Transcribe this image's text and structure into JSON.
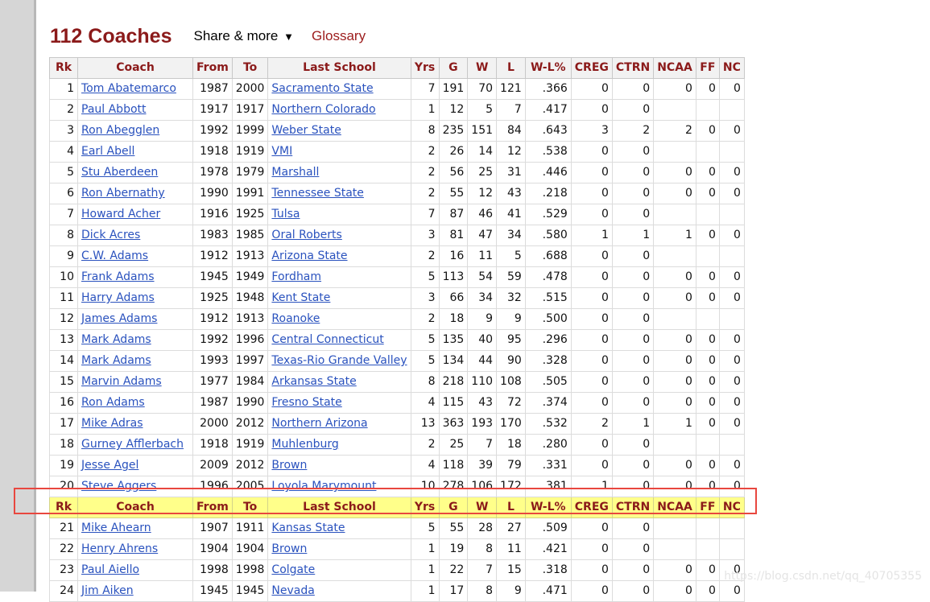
{
  "page": {
    "title": "112 Coaches",
    "share_label": "Share & more",
    "share_caret": "▼",
    "glossary_label": "Glossary",
    "watermark": "https://blog.csdn.net/qq_40705355"
  },
  "table": {
    "headers": [
      "Rk",
      "Coach",
      "From",
      "To",
      "Last School",
      "Yrs",
      "G",
      "W",
      "L",
      "W-L%",
      "CREG",
      "CTRN",
      "NCAA",
      "FF",
      "NC"
    ],
    "rows_before": [
      [
        "1",
        "Tom Abatemarco",
        "1987",
        "2000",
        "Sacramento State",
        "7",
        "191",
        "70",
        "121",
        ".366",
        "0",
        "0",
        "0",
        "0",
        "0"
      ],
      [
        "2",
        "Paul Abbott",
        "1917",
        "1917",
        "Northern Colorado",
        "1",
        "12",
        "5",
        "7",
        ".417",
        "0",
        "0",
        "",
        "",
        ""
      ],
      [
        "3",
        "Ron Abegglen",
        "1992",
        "1999",
        "Weber State",
        "8",
        "235",
        "151",
        "84",
        ".643",
        "3",
        "2",
        "2",
        "0",
        "0"
      ],
      [
        "4",
        "Earl Abell",
        "1918",
        "1919",
        "VMI",
        "2",
        "26",
        "14",
        "12",
        ".538",
        "0",
        "0",
        "",
        "",
        ""
      ],
      [
        "5",
        "Stu Aberdeen",
        "1978",
        "1979",
        "Marshall",
        "2",
        "56",
        "25",
        "31",
        ".446",
        "0",
        "0",
        "0",
        "0",
        "0"
      ],
      [
        "6",
        "Ron Abernathy",
        "1990",
        "1991",
        "Tennessee State",
        "2",
        "55",
        "12",
        "43",
        ".218",
        "0",
        "0",
        "0",
        "0",
        "0"
      ],
      [
        "7",
        "Howard Acher",
        "1916",
        "1925",
        "Tulsa",
        "7",
        "87",
        "46",
        "41",
        ".529",
        "0",
        "0",
        "",
        "",
        ""
      ],
      [
        "8",
        "Dick Acres",
        "1983",
        "1985",
        "Oral Roberts",
        "3",
        "81",
        "47",
        "34",
        ".580",
        "1",
        "1",
        "1",
        "0",
        "0"
      ],
      [
        "9",
        "C.W. Adams",
        "1912",
        "1913",
        "Arizona State",
        "2",
        "16",
        "11",
        "5",
        ".688",
        "0",
        "0",
        "",
        "",
        ""
      ],
      [
        "10",
        "Frank Adams",
        "1945",
        "1949",
        "Fordham",
        "5",
        "113",
        "54",
        "59",
        ".478",
        "0",
        "0",
        "0",
        "0",
        "0"
      ],
      [
        "11",
        "Harry Adams",
        "1925",
        "1948",
        "Kent State",
        "3",
        "66",
        "34",
        "32",
        ".515",
        "0",
        "0",
        "0",
        "0",
        "0"
      ],
      [
        "12",
        "James Adams",
        "1912",
        "1913",
        "Roanoke",
        "2",
        "18",
        "9",
        "9",
        ".500",
        "0",
        "0",
        "",
        "",
        ""
      ],
      [
        "13",
        "Mark Adams",
        "1992",
        "1996",
        "Central Connecticut",
        "5",
        "135",
        "40",
        "95",
        ".296",
        "0",
        "0",
        "0",
        "0",
        "0"
      ],
      [
        "14",
        "Mark Adams",
        "1993",
        "1997",
        "Texas-Rio Grande Valley",
        "5",
        "134",
        "44",
        "90",
        ".328",
        "0",
        "0",
        "0",
        "0",
        "0"
      ],
      [
        "15",
        "Marvin Adams",
        "1977",
        "1984",
        "Arkansas State",
        "8",
        "218",
        "110",
        "108",
        ".505",
        "0",
        "0",
        "0",
        "0",
        "0"
      ],
      [
        "16",
        "Ron Adams",
        "1987",
        "1990",
        "Fresno State",
        "4",
        "115",
        "43",
        "72",
        ".374",
        "0",
        "0",
        "0",
        "0",
        "0"
      ],
      [
        "17",
        "Mike Adras",
        "2000",
        "2012",
        "Northern Arizona",
        "13",
        "363",
        "193",
        "170",
        ".532",
        "2",
        "1",
        "1",
        "0",
        "0"
      ],
      [
        "18",
        "Gurney Afflerbach",
        "1918",
        "1919",
        "Muhlenburg",
        "2",
        "25",
        "7",
        "18",
        ".280",
        "0",
        "0",
        "",
        "",
        ""
      ],
      [
        "19",
        "Jesse Agel",
        "2009",
        "2012",
        "Brown",
        "4",
        "118",
        "39",
        "79",
        ".331",
        "0",
        "0",
        "0",
        "0",
        "0"
      ],
      [
        "20",
        "Steve Aggers",
        "1996",
        "2005",
        "Loyola Marymount",
        "10",
        "278",
        "106",
        "172",
        ".381",
        "1",
        "0",
        "0",
        "0",
        "0"
      ]
    ],
    "rows_after": [
      [
        "21",
        "Mike Ahearn",
        "1907",
        "1911",
        "Kansas State",
        "5",
        "55",
        "28",
        "27",
        ".509",
        "0",
        "0",
        "",
        "",
        ""
      ],
      [
        "22",
        "Henry Ahrens",
        "1904",
        "1904",
        "Brown",
        "1",
        "19",
        "8",
        "11",
        ".421",
        "0",
        "0",
        "",
        "",
        ""
      ],
      [
        "23",
        "Paul Aiello",
        "1998",
        "1998",
        "Colgate",
        "1",
        "22",
        "7",
        "15",
        ".318",
        "0",
        "0",
        "0",
        "0",
        "0"
      ],
      [
        "24",
        "Jim Aiken",
        "1945",
        "1945",
        "Nevada",
        "1",
        "17",
        "8",
        "9",
        ".471",
        "0",
        "0",
        "0",
        "0",
        "0"
      ]
    ]
  },
  "colors": {
    "title": "#8b1a1a",
    "link": "#2a52be",
    "repeat_header_bg": "#ffff8a",
    "highlight_border": "#e8473f"
  }
}
